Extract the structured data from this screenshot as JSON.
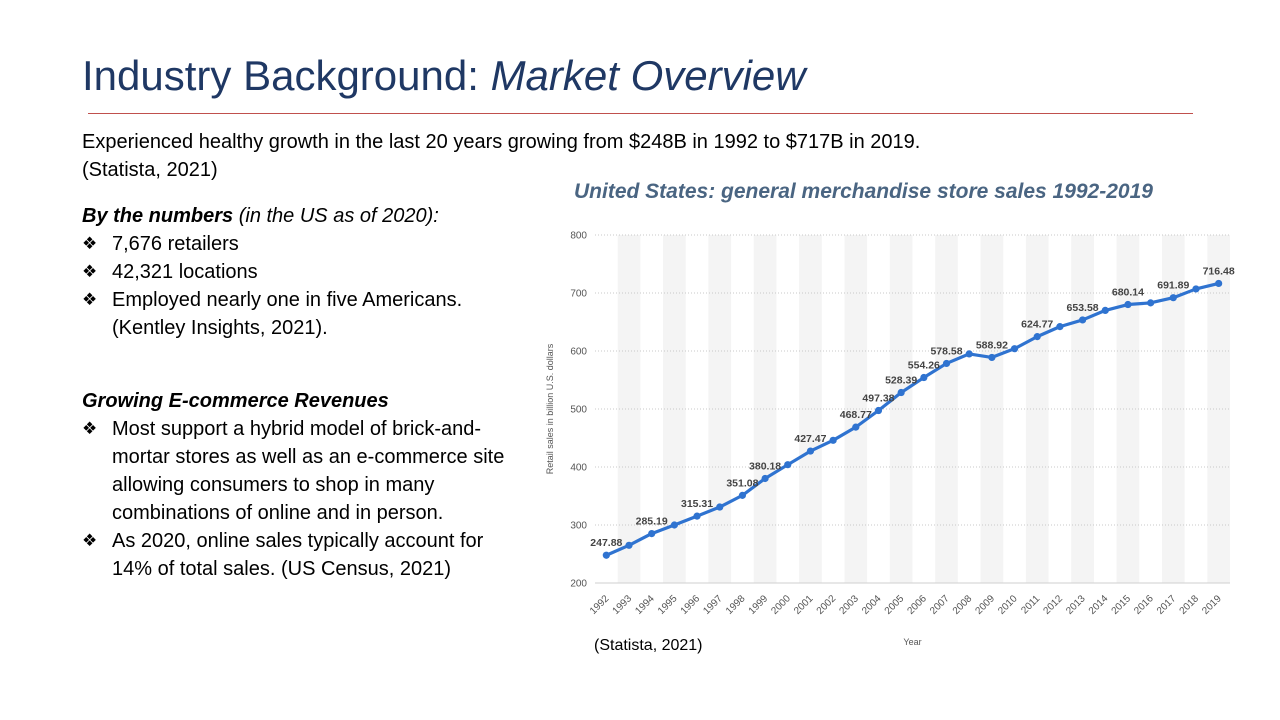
{
  "slide": {
    "title_main": "Industry Background: ",
    "title_italic": "Market Overview",
    "intro_line1": "Experienced healthy growth in the last 20 years growing from $248B in 1992 to $717B in 2019.",
    "intro_line2": "(Statista, 2021)",
    "numbers_heading": "By the numbers",
    "numbers_heading_sub": " (in the US as of 2020):",
    "numbers_items": [
      "7,676 retailers",
      "42,321 locations",
      "Employed nearly one in five Americans. (Kentley Insights, 2021)."
    ],
    "ecom_heading": "Growing E-commerce Revenues",
    "ecom_items": [
      "Most support a hybrid model of brick-and-mortar stores as well as an e-commerce site allowing consumers to shop in many combinations of online and in person.",
      "As 2020, online sales typically account for 14% of total sales. (US Census, 2021)"
    ],
    "chart_source": "(Statista, 2021)",
    "bullet_icon": "four-diamond-bullet-icon"
  },
  "chart_data": {
    "type": "line",
    "title": "United States: general merchandise store sales 1992-2019",
    "xlabel": "Year",
    "ylabel": "Retail sales in billion U.S. dollars",
    "ylim": [
      200,
      800
    ],
    "yticks": [
      200,
      300,
      400,
      500,
      600,
      700,
      800
    ],
    "categories": [
      "1992",
      "1993",
      "1994",
      "1995",
      "1996",
      "1997",
      "1998",
      "1999",
      "2000",
      "2001",
      "2002",
      "2003",
      "2004",
      "2005",
      "2006",
      "2007",
      "2008",
      "2009",
      "2010",
      "2011",
      "2012",
      "2013",
      "2014",
      "2015",
      "2016",
      "2017",
      "2018",
      "2019"
    ],
    "values": [
      247.88,
      265,
      285.19,
      300,
      315.31,
      331,
      351.08,
      380.18,
      404,
      427.47,
      446,
      468.77,
      497.38,
      528.39,
      554.26,
      578.58,
      595,
      588.92,
      604,
      624.77,
      642,
      653.58,
      670,
      680.14,
      683,
      691.89,
      707,
      716.48
    ],
    "data_labels": [
      "247.88",
      "",
      "285.19",
      "",
      "315.31",
      "",
      "351.08",
      "380.18",
      "",
      "427.47",
      "",
      "468.77",
      "497.38",
      "528.39",
      "554.26",
      "578.58",
      "",
      "588.92",
      "",
      "624.77",
      "",
      "653.58",
      "",
      "680.14",
      "",
      "691.89",
      "",
      "716.48"
    ],
    "line_color": "#2f73d0",
    "grid": true,
    "legend": "none"
  }
}
